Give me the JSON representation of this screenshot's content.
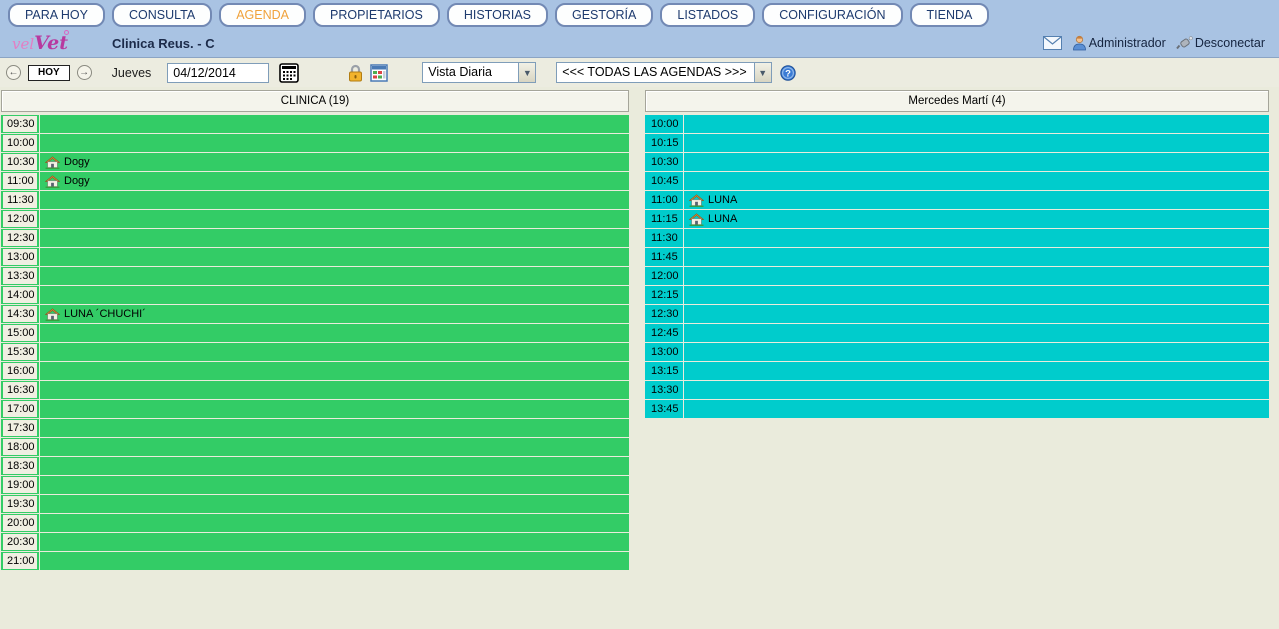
{
  "nav": {
    "tabs": [
      {
        "label": "PARA HOY",
        "active": false
      },
      {
        "label": "CONSULTA",
        "active": false
      },
      {
        "label": "AGENDA",
        "active": true
      },
      {
        "label": "PROPIETARIOS",
        "active": false
      },
      {
        "label": "HISTORIAS",
        "active": false
      },
      {
        "label": "GESTORÍA",
        "active": false
      },
      {
        "label": "LISTADOS",
        "active": false
      },
      {
        "label": "CONFIGURACIÓN",
        "active": false
      },
      {
        "label": "TIENDA",
        "active": false
      }
    ]
  },
  "brand": {
    "logo_prefix": "vel",
    "logo_suffix": "Vet",
    "clinic_title": "Clinica Reus. - C",
    "admin_label": "Administrador",
    "disconnect_label": "Desconectar"
  },
  "toolbar": {
    "prev_label": "←",
    "today_label": "HOY",
    "next_label": "→",
    "weekday": "Jueves",
    "date_value": "04/12/2014",
    "view_selected": "Vista Diaria",
    "agenda_filter_selected": "<<< TODAS LAS AGENDAS >>>"
  },
  "colors": {
    "bar_blue": "#a9c3e3",
    "tab_text": "#1d3a6e",
    "tab_active_text": "#f0a23c",
    "page_bg": "#eaebdc",
    "agenda_green": "#33cc66",
    "agenda_cyan": "#00cccc",
    "time_cell_cream": "#f0efe2"
  },
  "agendas": [
    {
      "title": "CLINICA (19)",
      "row_color": "#33cc66",
      "time_bg": "#f0efe2",
      "slot_minutes": 30,
      "slots": [
        {
          "time": "09:30",
          "label": ""
        },
        {
          "time": "10:00",
          "label": ""
        },
        {
          "time": "10:30",
          "label": "Dogy",
          "home_icon": true
        },
        {
          "time": "11:00",
          "label": "Dogy",
          "home_icon": true
        },
        {
          "time": "11:30",
          "label": ""
        },
        {
          "time": "12:00",
          "label": ""
        },
        {
          "time": "12:30",
          "label": ""
        },
        {
          "time": "13:00",
          "label": ""
        },
        {
          "time": "13:30",
          "label": ""
        },
        {
          "time": "14:00",
          "label": ""
        },
        {
          "time": "14:30",
          "label": "LUNA ´CHUCHI´",
          "home_icon": true
        },
        {
          "time": "15:00",
          "label": ""
        },
        {
          "time": "15:30",
          "label": ""
        },
        {
          "time": "16:00",
          "label": ""
        },
        {
          "time": "16:30",
          "label": ""
        },
        {
          "time": "17:00",
          "label": ""
        },
        {
          "time": "17:30",
          "label": ""
        },
        {
          "time": "18:00",
          "label": ""
        },
        {
          "time": "18:30",
          "label": ""
        },
        {
          "time": "19:00",
          "label": ""
        },
        {
          "time": "19:30",
          "label": ""
        },
        {
          "time": "20:00",
          "label": ""
        },
        {
          "time": "20:30",
          "label": ""
        },
        {
          "time": "21:00",
          "label": ""
        }
      ]
    },
    {
      "title": "Mercedes Martí (4)",
      "row_color": "#00cccc",
      "time_bg": "#00cccc",
      "slot_minutes": 15,
      "slots": [
        {
          "time": "10:00",
          "label": ""
        },
        {
          "time": "10:15",
          "label": ""
        },
        {
          "time": "10:30",
          "label": ""
        },
        {
          "time": "10:45",
          "label": ""
        },
        {
          "time": "11:00",
          "label": "LUNA",
          "home_icon": true
        },
        {
          "time": "11:15",
          "label": "LUNA",
          "home_icon": true
        },
        {
          "time": "11:30",
          "label": ""
        },
        {
          "time": "11:45",
          "label": ""
        },
        {
          "time": "12:00",
          "label": ""
        },
        {
          "time": "12:15",
          "label": ""
        },
        {
          "time": "12:30",
          "label": ""
        },
        {
          "time": "12:45",
          "label": ""
        },
        {
          "time": "13:00",
          "label": ""
        },
        {
          "time": "13:15",
          "label": ""
        },
        {
          "time": "13:30",
          "label": ""
        },
        {
          "time": "13:45",
          "label": ""
        }
      ]
    }
  ]
}
